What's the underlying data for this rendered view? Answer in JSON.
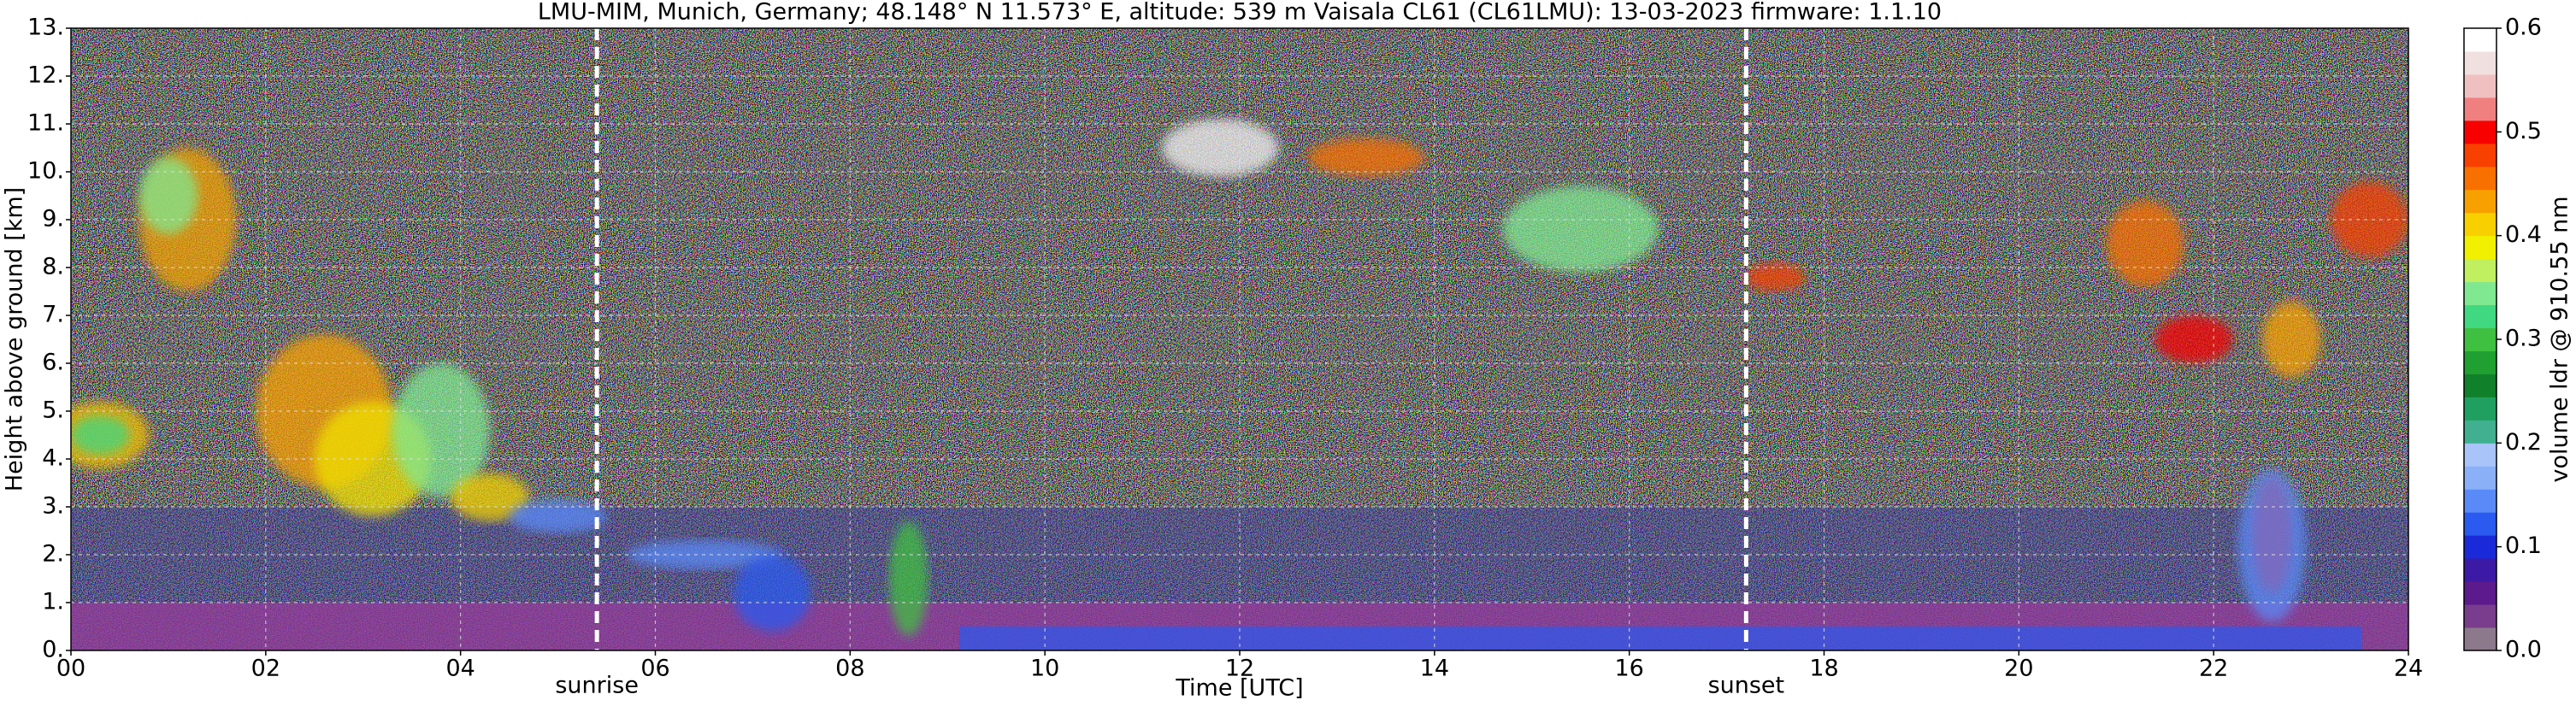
{
  "chart_data": {
    "type": "heatmap",
    "title": "LMU-MIM, Munich, Germany; 48.148° N 11.573° E, altitude: 539 m    Vaisala CL61 (CL61LMU): 13-03-2023    firmware: 1.1.10",
    "x_label": "Time [UTC]",
    "y_label": "Height above ground [km]",
    "colorbar_label": "volume ldr @ 910.55 nm",
    "xlim": [
      0,
      24
    ],
    "xticks": [
      {
        "value": 0,
        "label": "00"
      },
      {
        "value": 2,
        "label": "02"
      },
      {
        "value": 4,
        "label": "04"
      },
      {
        "value": 6,
        "label": "06"
      },
      {
        "value": 8,
        "label": "08"
      },
      10,
      12,
      14,
      16,
      18,
      20,
      22,
      24
    ],
    "ylim": [
      0,
      13
    ],
    "yticks": [
      {
        "value": 0,
        "label": "0."
      },
      {
        "value": 1,
        "label": "1."
      },
      {
        "value": 2,
        "label": "2."
      },
      {
        "value": 3,
        "label": "3."
      },
      {
        "value": 4,
        "label": "4."
      },
      {
        "value": 5,
        "label": "5."
      },
      {
        "value": 6,
        "label": "6."
      },
      {
        "value": 7,
        "label": "7."
      },
      {
        "value": 8,
        "label": "8."
      },
      {
        "value": 9,
        "label": "9."
      },
      {
        "value": 10,
        "label": "10."
      },
      {
        "value": 11,
        "label": "11."
      },
      {
        "value": 12,
        "label": "12."
      },
      {
        "value": 13,
        "label": "13."
      }
    ],
    "clim": [
      0,
      0.6
    ],
    "cticks": [
      {
        "value": 0,
        "label": "0.0"
      },
      0.1,
      0.2,
      0.3,
      0.4,
      0.5,
      0.6
    ],
    "colormap": [
      "#8c7a8c",
      "#7a3c8c",
      "#5c1a8c",
      "#3c1aa6",
      "#1a2ad8",
      "#2a5af0",
      "#5a8af8",
      "#8ab0f8",
      "#a8c4f8",
      "#40b090",
      "#20a060",
      "#10802a",
      "#20a030",
      "#40c040",
      "#40d880",
      "#80e890",
      "#c0f060",
      "#f0f000",
      "#f8d000",
      "#f8a000",
      "#f87000",
      "#f84000",
      "#f80000",
      "#f08080",
      "#f0c0c0",
      "#f0e0e0",
      "#ffffff"
    ],
    "grid": true,
    "annotations": [
      {
        "label": "sunrise",
        "x": 5.4
      },
      {
        "label": "sunset",
        "x": 17.2
      }
    ]
  }
}
